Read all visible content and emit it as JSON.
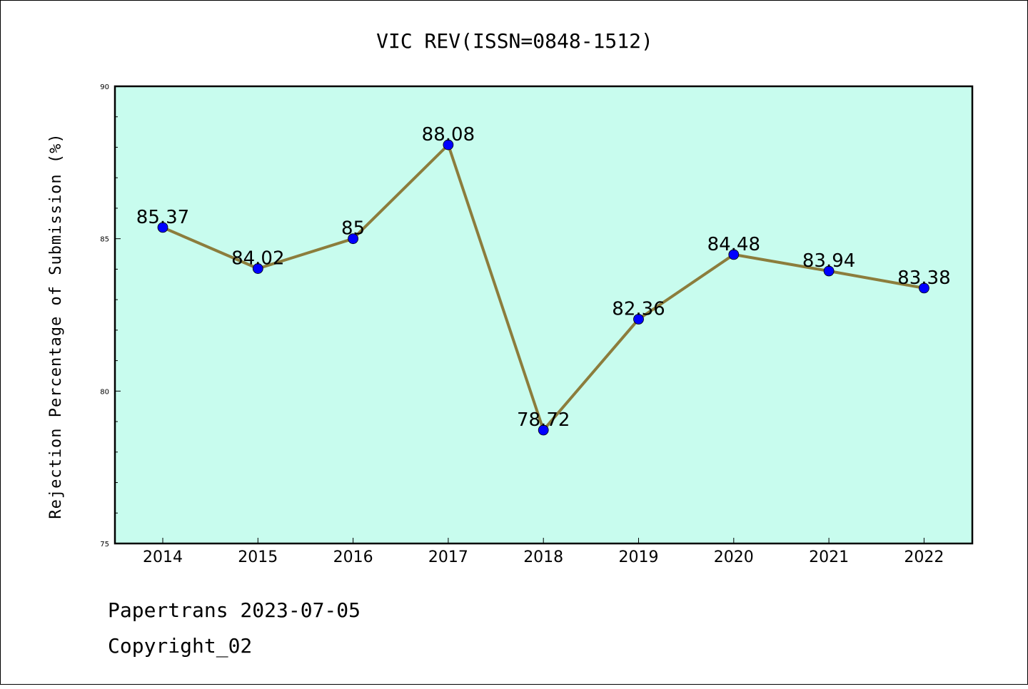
{
  "footer": {
    "line1": "Papertrans 2023-07-05",
    "line2": "Copyright_02"
  },
  "colors": {
    "plot_background": "#c8fcee",
    "line": "#8c7d3c",
    "marker": "#0000ff"
  },
  "chart_data": {
    "type": "line",
    "title": "VIC REV(ISSN=0848-1512)",
    "xlabel": "",
    "ylabel": "Rejection Percentage of Submission (%)",
    "categories": [
      "2014",
      "2015",
      "2016",
      "2017",
      "2018",
      "2019",
      "2020",
      "2021",
      "2022"
    ],
    "values": [
      85.37,
      84.02,
      85,
      88.08,
      78.72,
      82.36,
      84.48,
      83.94,
      83.38
    ],
    "data_labels": [
      "85.37",
      "84.02",
      "85",
      "88.08",
      "78.72",
      "82.36",
      "84.48",
      "83.94",
      "83.38"
    ],
    "ylim": [
      75,
      90
    ],
    "yticks": [
      75,
      80,
      85,
      90
    ],
    "grid": false,
    "legend": "none"
  }
}
